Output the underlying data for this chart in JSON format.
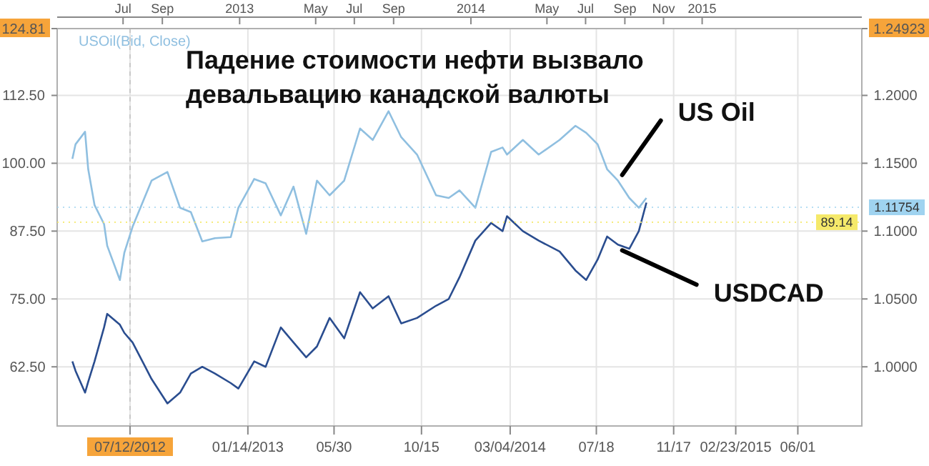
{
  "chart_data": {
    "type": "line",
    "title": "Падение стоимости нефти вызвало девальвацию канадской валюты",
    "annotations": [
      "USOil(Bid, Close)"
    ],
    "x": [
      "2012-04-12",
      "2012-04-17",
      "2012-05-02",
      "2012-05-07",
      "2012-05-17",
      "2012-06-01",
      "2012-06-06",
      "2012-06-26",
      "2012-07-03",
      "2012-07-16",
      "2012-08-15",
      "2012-09-09",
      "2012-09-29",
      "2012-10-16",
      "2012-11-03",
      "2012-11-23",
      "2012-12-18",
      "2012-12-30",
      "2013-01-24",
      "2013-02-11",
      "2013-03-07",
      "2013-03-27",
      "2013-04-16",
      "2013-05-03",
      "2013-05-23",
      "2013-06-15",
      "2013-07-10",
      "2013-07-30",
      "2013-08-24",
      "2013-09-13",
      "2013-10-08",
      "2013-11-07",
      "2013-11-27",
      "2013-12-14",
      "2014-01-08",
      "2014-02-02",
      "2014-02-20",
      "2014-02-27",
      "2014-03-24",
      "2014-04-18",
      "2014-05-21",
      "2014-06-15",
      "2014-07-02",
      "2014-07-20",
      "2014-08-04",
      "2014-08-21",
      "2014-09-08",
      "2014-09-23",
      "2014-10-05"
    ],
    "series": [
      {
        "name": "US Oil",
        "color": "#8fbfe0",
        "values": [
          100.8,
          103.5,
          105.8,
          98.9,
          92.3,
          88.8,
          84.8,
          78.5,
          83.5,
          88.3,
          96.8,
          98.4,
          91.8,
          91,
          85.6,
          86.2,
          86.4,
          91.8,
          97.1,
          96.3,
          90.4,
          95.7,
          87,
          96.8,
          94.1,
          96.8,
          106.4,
          104.3,
          109.6,
          104.8,
          101.6,
          94.1,
          93.6,
          95,
          91.8,
          102.1,
          102.9,
          101.6,
          104.3,
          101.6,
          104.3,
          106.9,
          105.6,
          103.5,
          98.9,
          96.8,
          93.6,
          91.8,
          93.6
        ]
      },
      {
        "name": "USDCAD",
        "color": "#2a4d8f",
        "axis": "y2",
        "values": [
          1.004,
          0.997,
          0.981,
          0.989,
          1.004,
          1.029,
          1.039,
          1.031,
          1.025,
          1.018,
          0.991,
          0.973,
          0.981,
          0.995,
          1,
          0.995,
          0.988,
          0.984,
          1.004,
          1,
          1.029,
          1.018,
          1.007,
          1.015,
          1.036,
          1.021,
          1.055,
          1.043,
          1.052,
          1.032,
          1.036,
          1.045,
          1.05,
          1.066,
          1.093,
          1.106,
          1.1,
          1.111,
          1.1,
          1.093,
          1.085,
          1.071,
          1.064,
          1.079,
          1.096,
          1.09,
          1.087,
          1.1,
          1.121
        ]
      }
    ],
    "xlim": [
      "2012-03-19",
      "2015-09-10"
    ],
    "xticks": [
      {
        "value": "2012-07-12",
        "label": "07/12/2012"
      },
      {
        "value": "2013-01-14",
        "label": "01/14/2013"
      },
      {
        "value": "2013-05-30",
        "label": "05/30"
      },
      {
        "value": "2013-10-15",
        "label": "10/15"
      },
      {
        "value": "2014-03-04",
        "label": "03/04/2014"
      },
      {
        "value": "2014-07-18",
        "label": "07/18"
      },
      {
        "value": "2014-11-17",
        "label": "11/17"
      },
      {
        "value": "2015-02-23",
        "label": "02/23/2015"
      },
      {
        "value": "2015-06-01",
        "label": "06/01"
      }
    ],
    "x2lim": [
      "2012-03-19",
      "2015-09-10"
    ],
    "x2ticks": [
      {
        "value": "2012-07-01",
        "label": "Jul"
      },
      {
        "value": "2012-09-01",
        "label": "Sep"
      },
      {
        "value": "2013-01-01",
        "label": "2013"
      },
      {
        "value": "2013-05-01",
        "label": "May"
      },
      {
        "value": "2013-07-01",
        "label": "Jul"
      },
      {
        "value": "2013-09-01",
        "label": "Sep"
      },
      {
        "value": "2014-01-01",
        "label": "2014"
      },
      {
        "value": "2014-05-01",
        "label": "May"
      },
      {
        "value": "2014-07-01",
        "label": "Jul"
      },
      {
        "value": "2014-09-01",
        "label": "Sep"
      },
      {
        "value": "2014-11-01",
        "label": "Nov"
      },
      {
        "value": "2015-01-01",
        "label": "2015"
      }
    ],
    "ylim": [
      51.6,
      124.81
    ],
    "yticks": [
      {
        "value": 62.5,
        "label": "62.50"
      },
      {
        "value": 75,
        "label": "75.00"
      },
      {
        "value": 87.5,
        "label": "87.50"
      },
      {
        "value": 100,
        "label": "100.00"
      },
      {
        "value": 112.5,
        "label": "112.50"
      },
      {
        "value": 124.81,
        "label": "124.81"
      }
    ],
    "y2lim": [
      0.9564,
      1.24923
    ],
    "y2ticks": [
      {
        "value": 1,
        "label": "1.0000"
      },
      {
        "value": 1.05,
        "label": "1.0500"
      },
      {
        "value": 1.1,
        "label": "1.1000"
      },
      {
        "value": 1.15,
        "label": "1.1500"
      },
      {
        "value": 1.2,
        "label": "1.2000"
      },
      {
        "value": 1.24923,
        "label": "1.24923"
      }
    ],
    "ref_lines": [
      {
        "axis": "x",
        "value": "2012-07-12",
        "line_style": "dashed",
        "color": "#c8c8c8"
      },
      {
        "axis": "y",
        "value": 89.14,
        "label": "89.14",
        "color": "#f5e96a"
      },
      {
        "axis": "y2",
        "value": 1.11754,
        "label": "1.11754",
        "color": "#9fd3f0"
      }
    ],
    "grid": true,
    "marker": "none",
    "line_style": "solid"
  }
}
